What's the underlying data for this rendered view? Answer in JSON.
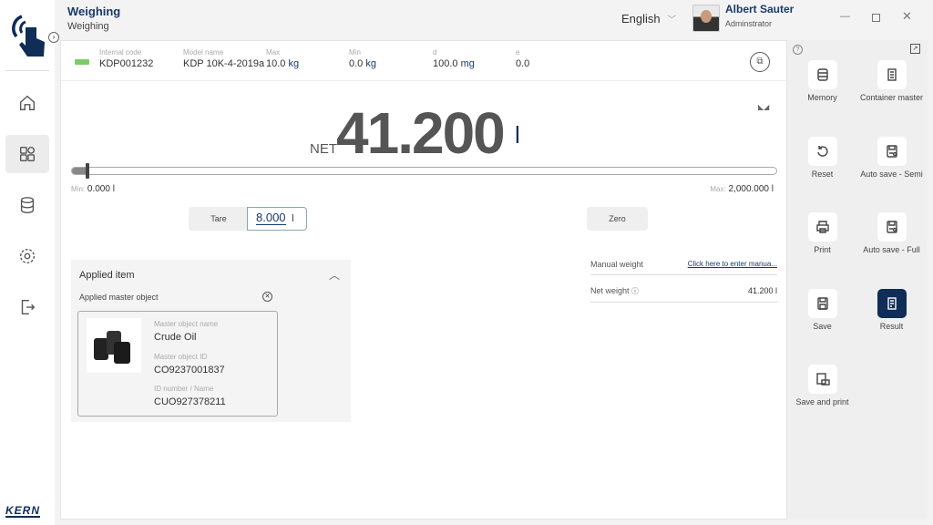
{
  "header": {
    "title": "Weighing",
    "subtitle": "Weighing",
    "language": "English",
    "user_name": "Albert Sauter",
    "user_role": "Adminstrator"
  },
  "sidebar": {
    "items": [
      {
        "icon": "home-icon"
      },
      {
        "icon": "dashboard-icon",
        "selected": true
      },
      {
        "icon": "database-icon"
      },
      {
        "icon": "gear-icon"
      },
      {
        "icon": "logout-icon"
      }
    ],
    "brand": "KERN"
  },
  "info": {
    "internal_code_label": "Internal code",
    "internal_code": "KDP001232",
    "model_label": "Model name",
    "model": "KDP 10K-4-2019a",
    "max_label": "Max",
    "max_value": "10.0",
    "max_unit": "kg",
    "min_label": "Min",
    "min_value": "0.0",
    "min_unit": "kg",
    "d_label": "d",
    "d_value": "100.0",
    "d_unit": "mg",
    "e_label": "e",
    "e_value": "0.0"
  },
  "display": {
    "net_label": "NET",
    "value": "41.200",
    "unit": "l",
    "min_label": "Min:",
    "min_value": "0.000 l",
    "max_label": "Max:",
    "max_value": "2,000.000 l",
    "fill_fraction": 0.02
  },
  "controls": {
    "tare_label": "Tare",
    "tare_value": "8.000",
    "tare_unit": "l",
    "zero_label": "Zero"
  },
  "applied": {
    "title": "Applied item",
    "subtitle": "Applied master object",
    "name_label": "Master object name",
    "name": "Crude Oil",
    "id_label": "Master object ID",
    "id": "CO9237001837",
    "idnum_label": "ID number / Name",
    "idnum": "CUO927378211"
  },
  "summary": {
    "manual_label": "Manual weight",
    "manual_link": "Click here to enter manua...",
    "net_label": "Net weight",
    "net_value": "41.200 l"
  },
  "actions": [
    {
      "label": "Memory"
    },
    {
      "label": "Container master"
    },
    {
      "label": "Reset"
    },
    {
      "label": "Auto save - Semi"
    },
    {
      "label": "Print"
    },
    {
      "label": "Auto save - Full"
    },
    {
      "label": "Save"
    },
    {
      "label": "Result",
      "selected": true
    },
    {
      "label": "Save and print"
    }
  ],
  "colors": {
    "brand": "#0f2d57",
    "accent": "#1a3a6b"
  }
}
